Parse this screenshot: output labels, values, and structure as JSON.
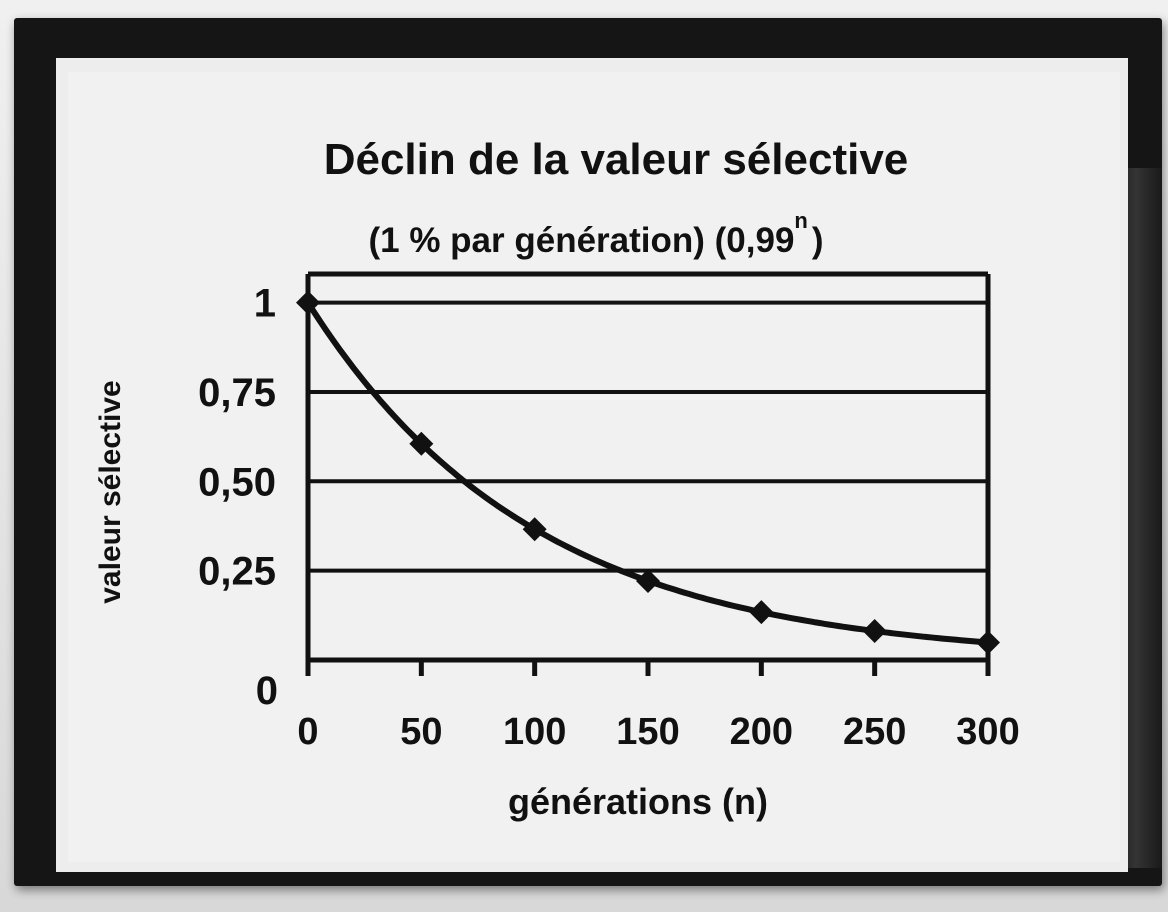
{
  "chart_data": {
    "type": "line",
    "title": "Déclin de la valeur sélective",
    "subtitle_main": "(1 % par génération) (0,99",
    "subtitle_exponent": "n",
    "subtitle_close": ")",
    "xlabel": "générations (n)",
    "ylabel": "valeur sélective",
    "x_tick_labels": [
      "0",
      "50",
      "100",
      "150",
      "200",
      "250",
      "300"
    ],
    "y_tick_labels": [
      "0",
      "0,25",
      "0,50",
      "0,75",
      "1"
    ],
    "x_ticks": [
      0,
      50,
      100,
      150,
      200,
      250,
      300
    ],
    "y_ticks": [
      0,
      0.25,
      0.5,
      0.75,
      1
    ],
    "xlim": [
      0,
      300
    ],
    "ylim": [
      0,
      1
    ],
    "grid": "horizontal",
    "series": [
      {
        "x": [
          0,
          50,
          100,
          150,
          200,
          250,
          300
        ],
        "y": [
          1.0,
          0.605,
          0.366,
          0.221,
          0.134,
          0.081,
          0.049
        ],
        "marker": "diamond"
      }
    ],
    "colors": {
      "ink": "#111111",
      "paper": "#f1f1f1"
    }
  }
}
